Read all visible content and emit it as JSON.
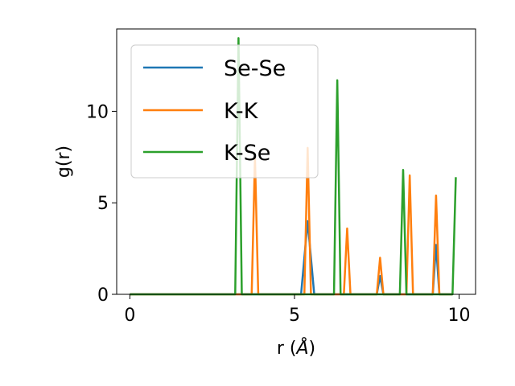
{
  "chart_data": {
    "type": "line",
    "xlabel_main": "r (",
    "xlabel_unit": "Å",
    "xlabel_close": ")",
    "ylabel": "g(r)",
    "xlim": [
      -0.4,
      10.5
    ],
    "ylim": [
      0,
      14.5
    ],
    "xticks": [
      0,
      5,
      10
    ],
    "yticks": [
      0,
      5,
      10
    ],
    "xtick_labels": [
      "0",
      "5",
      "10"
    ],
    "ytick_labels": [
      "0",
      "5",
      "10"
    ],
    "grid": false,
    "legend_position": "upper-left",
    "series": [
      {
        "name": "Se-Se",
        "color": "#1f77b4",
        "points": [
          [
            0,
            0
          ],
          [
            5.2,
            0
          ],
          [
            5.4,
            4.0
          ],
          [
            5.6,
            0
          ],
          [
            7.5,
            0
          ],
          [
            7.6,
            1.0
          ],
          [
            7.7,
            0
          ],
          [
            9.2,
            0
          ],
          [
            9.3,
            2.7
          ],
          [
            9.4,
            0
          ],
          [
            9.8,
            0
          ]
        ]
      },
      {
        "name": "K-K",
        "color": "#ff7f0e",
        "points": [
          [
            0,
            0
          ],
          [
            3.7,
            0
          ],
          [
            3.8,
            7.5
          ],
          [
            3.9,
            0
          ],
          [
            5.3,
            0
          ],
          [
            5.4,
            8.0
          ],
          [
            5.5,
            0
          ],
          [
            6.5,
            0
          ],
          [
            6.6,
            3.6
          ],
          [
            6.7,
            0
          ],
          [
            7.5,
            0
          ],
          [
            7.6,
            2.0
          ],
          [
            7.7,
            0
          ],
          [
            8.4,
            0
          ],
          [
            8.5,
            6.5
          ],
          [
            8.6,
            0
          ],
          [
            9.2,
            0
          ],
          [
            9.3,
            5.4
          ],
          [
            9.4,
            0
          ],
          [
            9.8,
            0
          ]
        ]
      },
      {
        "name": "K-Se",
        "color": "#2ca02c",
        "points": [
          [
            0,
            0
          ],
          [
            3.2,
            0
          ],
          [
            3.3,
            14.0
          ],
          [
            3.4,
            0
          ],
          [
            6.2,
            0
          ],
          [
            6.3,
            11.7
          ],
          [
            6.4,
            0
          ],
          [
            8.2,
            0
          ],
          [
            8.3,
            6.8
          ],
          [
            8.4,
            0
          ],
          [
            9.8,
            0
          ],
          [
            9.9,
            6.4
          ]
        ]
      }
    ]
  }
}
